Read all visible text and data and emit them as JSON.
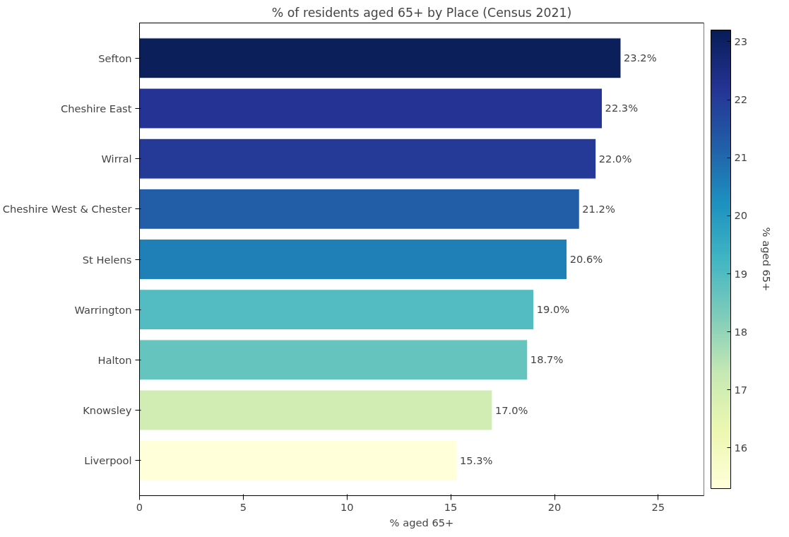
{
  "chart_data": {
    "type": "bar",
    "orientation": "horizontal",
    "title": "% of residents aged 65+ by Place (Census 2021)",
    "xlabel": "% aged 65+",
    "clabel": "% aged 65+",
    "categories": [
      "Sefton",
      "Cheshire East",
      "Wirral",
      "Cheshire West & Chester",
      "St Helens",
      "Warrington",
      "Halton",
      "Knowsley",
      "Liverpool"
    ],
    "values": [
      23.2,
      22.3,
      22.0,
      21.2,
      20.6,
      19.0,
      18.7,
      17.0,
      15.3
    ],
    "colors": [
      "#0b1f5b",
      "#253494",
      "#253997",
      "#225ea8",
      "#1f80b8",
      "#52bcc2",
      "#66c4be",
      "#d1edb3",
      "#ffffd9"
    ],
    "value_labels": [
      "23.2%",
      "22.3%",
      "22.0%",
      "21.2%",
      "20.6%",
      "19.0%",
      "18.7%",
      "17.0%",
      "15.3%"
    ],
    "xlim": [
      0,
      27.2
    ],
    "xticks": [
      0,
      5,
      10,
      15,
      20,
      25
    ],
    "clim": [
      15.3,
      23.2
    ],
    "cticks": [
      16,
      17,
      18,
      19,
      20,
      21,
      22,
      23
    ],
    "grid": false
  }
}
